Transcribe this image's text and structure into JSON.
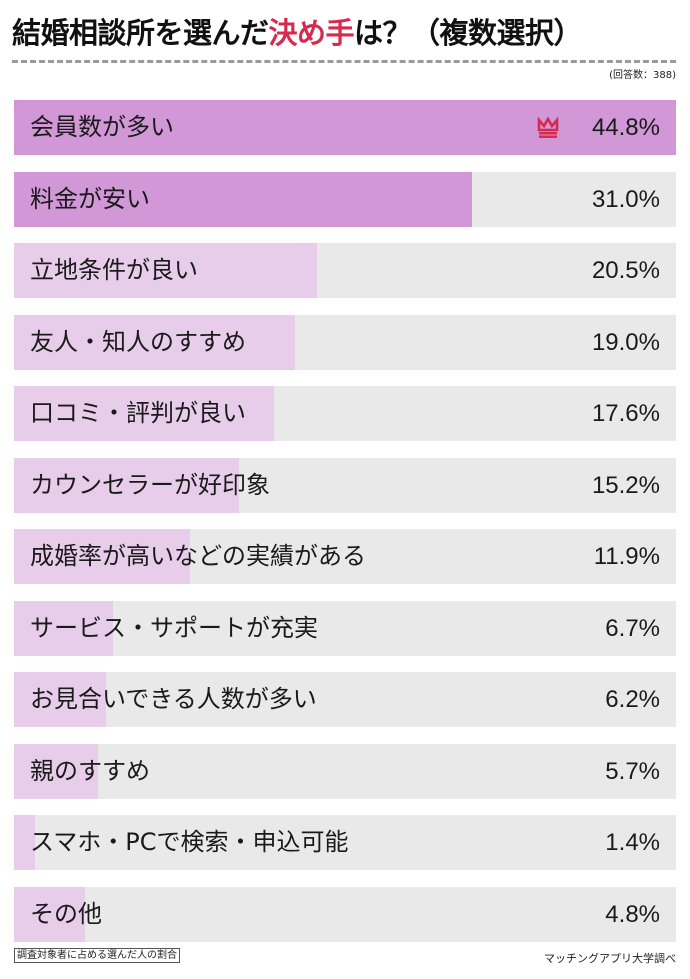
{
  "title": {
    "prefix": "結婚相談所を選んだ",
    "accent": "決め手",
    "suffix": "は？（複数選択）"
  },
  "respondents": "(回答数：388)",
  "footnote": "調査対象者に占める選んだ人の割合",
  "source": "マッチングアプリ大学調べ",
  "colors": {
    "top_fill": "#d197d6",
    "fill": "#e8cdeb",
    "track": "#e9e9e9",
    "accent": "#d62a4e"
  },
  "rows": [
    {
      "label": "会員数が多い",
      "value": "44.8%"
    },
    {
      "label": "料金が安い",
      "value": "31.0%"
    },
    {
      "label": "立地条件が良い",
      "value": "20.5%"
    },
    {
      "label": "友人・知人のすすめ",
      "value": "19.0%"
    },
    {
      "label": "口コミ・評判が良い",
      "value": "17.6%"
    },
    {
      "label": "カウンセラーが好印象",
      "value": "15.2%"
    },
    {
      "label": "成婚率が高いなどの実績がある",
      "value": "11.9%"
    },
    {
      "label": "サービス・サポートが充実",
      "value": "6.7%"
    },
    {
      "label": "お見合いできる人数が多い",
      "value": "6.2%"
    },
    {
      "label": "親のすすめ",
      "value": "5.7%"
    },
    {
      "label": "スマホ・PCで検索・申込可能",
      "value": "1.4%"
    },
    {
      "label": "その他",
      "value": "4.8%"
    }
  ],
  "chart_data": {
    "type": "bar",
    "orientation": "horizontal",
    "title": "結婚相談所を選んだ決め手は？（複数選択）",
    "subtitle": "(回答数：388)",
    "categories": [
      "会員数が多い",
      "料金が安い",
      "立地条件が良い",
      "友人・知人のすすめ",
      "口コミ・評判が良い",
      "カウンセラーが好印象",
      "成婚率が高いなどの実績がある",
      "サービス・サポートが充実",
      "お見合いできる人数が多い",
      "親のすすめ",
      "スマホ・PCで検索・申込可能",
      "その他"
    ],
    "values": [
      44.8,
      31.0,
      20.5,
      19.0,
      17.6,
      15.2,
      11.9,
      6.7,
      6.2,
      5.7,
      1.4,
      4.8
    ],
    "unit": "%",
    "xlim": [
      0,
      44.8
    ],
    "highlight": [
      "会員数が多い",
      "料金が安い"
    ],
    "annotations": [
      "crown icon on top item"
    ],
    "note": "調査対象者に占める選んだ人の割合",
    "source": "マッチングアプリ大学調べ",
    "grid": false,
    "legend": null
  }
}
